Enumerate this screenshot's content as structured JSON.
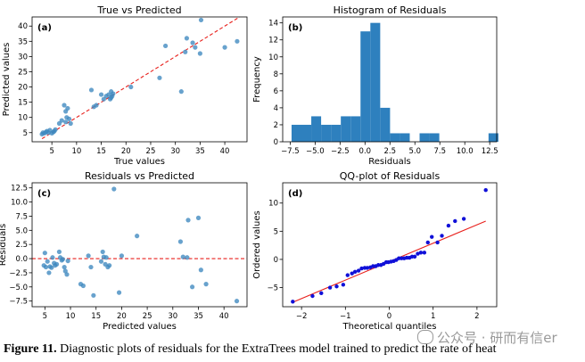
{
  "chart_data": [
    {
      "id": "a",
      "type": "scatter",
      "title": "True vs Predicted",
      "panel_label": "(a)",
      "xlabel": "True values",
      "ylabel": "Predicted values",
      "xlim": [
        1,
        44.5
      ],
      "ylim": [
        2,
        43
      ],
      "xticks": [
        5,
        10,
        15,
        20,
        25,
        30,
        35,
        40
      ],
      "yticks": [
        5,
        10,
        15,
        20,
        25,
        30,
        35,
        40
      ],
      "colors": {
        "points": "#3d88bf",
        "line": "#e8201c"
      },
      "reference_line": {
        "from": [
          3,
          3
        ],
        "to": [
          43,
          43
        ]
      },
      "points": [
        [
          3.0,
          4.5
        ],
        [
          3.2,
          5.0
        ],
        [
          3.5,
          4.8
        ],
        [
          3.8,
          5.2
        ],
        [
          4.0,
          5.5
        ],
        [
          4.3,
          5.0
        ],
        [
          4.6,
          5.8
        ],
        [
          5.0,
          4.8
        ],
        [
          5.3,
          5.2
        ],
        [
          5.7,
          6.0
        ],
        [
          5.5,
          5.5
        ],
        [
          6.5,
          8.0
        ],
        [
          7.0,
          9.0
        ],
        [
          7.5,
          14.0
        ],
        [
          7.8,
          12.0
        ],
        [
          7.8,
          8.5
        ],
        [
          8.0,
          10.0
        ],
        [
          8.2,
          13.0
        ],
        [
          8.5,
          9.5
        ],
        [
          8.8,
          8.0
        ],
        [
          13.0,
          19.0
        ],
        [
          13.5,
          13.5
        ],
        [
          14.0,
          14.0
        ],
        [
          15.0,
          17.5
        ],
        [
          15.5,
          16.0
        ],
        [
          16.0,
          17.0
        ],
        [
          16.5,
          17.5
        ],
        [
          17.0,
          18.5
        ],
        [
          17.0,
          16.5
        ],
        [
          16.8,
          16.0
        ],
        [
          17.2,
          17.0
        ],
        [
          17.4,
          17.8
        ],
        [
          21.0,
          20.0
        ],
        [
          26.8,
          23.0
        ],
        [
          28.0,
          33.5
        ],
        [
          31.2,
          18.5
        ],
        [
          32.0,
          31.5
        ],
        [
          32.3,
          36.0
        ],
        [
          33.5,
          34.5
        ],
        [
          34.0,
          33.0
        ],
        [
          35.0,
          31.0
        ],
        [
          35.2,
          42.0
        ],
        [
          40.0,
          33.0
        ],
        [
          42.5,
          35.0
        ]
      ]
    },
    {
      "id": "b",
      "type": "bar",
      "title": "Histogram of Residuals",
      "panel_label": "(b)",
      "xlabel": "Residuals",
      "ylabel": "Frequency",
      "xlim": [
        -8.25,
        13.2
      ],
      "ylim": [
        0,
        14.7
      ],
      "xticks": [
        -7.5,
        -5.0,
        -2.5,
        0.0,
        2.5,
        5.0,
        7.5,
        10.0,
        12.5
      ],
      "xtick_labels": [
        "−7.5",
        "−5.0",
        "−2.5",
        "0.0",
        "2.5",
        "5.0",
        "7.5",
        "10.0",
        "12.5"
      ],
      "yticks": [
        0,
        2,
        4,
        6,
        8,
        10,
        12,
        14
      ],
      "colors": {
        "bars": "#2e80be"
      },
      "bin_start": -7.36,
      "bin_width": 0.987,
      "values": [
        2,
        2,
        3,
        2,
        2,
        3,
        3,
        13,
        14,
        4,
        1,
        1,
        0,
        1,
        1,
        0,
        0,
        0,
        0,
        0,
        1
      ]
    },
    {
      "id": "c",
      "type": "scatter",
      "title": "Residuals vs Predicted",
      "panel_label": "(c)",
      "xlabel": "Predicted values",
      "ylabel": "Residuals",
      "xlim": [
        2.5,
        44.5
      ],
      "ylim": [
        -8.5,
        13.4
      ],
      "xticks": [
        5,
        10,
        15,
        20,
        25,
        30,
        35,
        40
      ],
      "yticks": [
        -7.5,
        -5.0,
        -2.5,
        0.0,
        2.5,
        5.0,
        7.5,
        10.0,
        12.5
      ],
      "ytick_labels": [
        "−7.5",
        "−5.0",
        "−2.5",
        "0.0",
        "2.5",
        "5.0",
        "7.5",
        "10.0",
        "12.5"
      ],
      "colors": {
        "points": "#3d88bf",
        "line": "#e8201c"
      },
      "zero_line": 0,
      "points": [
        [
          4.8,
          -1.2
        ],
        [
          5.0,
          1.0
        ],
        [
          5.2,
          -1.5
        ],
        [
          5.5,
          -0.5
        ],
        [
          5.8,
          -2.5
        ],
        [
          6.0,
          -1.4
        ],
        [
          6.3,
          -1.6
        ],
        [
          6.5,
          0.2
        ],
        [
          6.8,
          -0.8
        ],
        [
          7.0,
          -1.2
        ],
        [
          7.3,
          -1.0
        ],
        [
          7.8,
          1.2
        ],
        [
          8.0,
          0.2
        ],
        [
          8.3,
          -0.3
        ],
        [
          8.5,
          -0.1
        ],
        [
          8.8,
          -1.5
        ],
        [
          9.0,
          -2.2
        ],
        [
          9.3,
          -2.8
        ],
        [
          9.5,
          -0.4
        ],
        [
          12.0,
          -4.5
        ],
        [
          12.5,
          -4.8
        ],
        [
          13.5,
          0.5
        ],
        [
          14.0,
          -1.5
        ],
        [
          14.5,
          -6.5
        ],
        [
          16.0,
          -0.5
        ],
        [
          16.3,
          1.2
        ],
        [
          16.5,
          0.3
        ],
        [
          16.8,
          -1.0
        ],
        [
          17.0,
          0.2
        ],
        [
          17.3,
          -1.5
        ],
        [
          17.6,
          -1.2
        ],
        [
          18.5,
          12.3
        ],
        [
          19.5,
          -6.0
        ],
        [
          20.0,
          0.5
        ],
        [
          23.0,
          4.0
        ],
        [
          31.5,
          3.0
        ],
        [
          32.0,
          0.3
        ],
        [
          32.8,
          0.2
        ],
        [
          33.0,
          6.8
        ],
        [
          33.8,
          -5.0
        ],
        [
          35.0,
          7.2
        ],
        [
          35.5,
          -2.0
        ],
        [
          36.5,
          -4.5
        ],
        [
          42.5,
          -7.5
        ]
      ]
    },
    {
      "id": "d",
      "type": "scatter",
      "title": "QQ-plot of Residuals",
      "panel_label": "(d)",
      "xlabel": "Theoretical quantiles",
      "ylabel": "Ordered values",
      "xlim": [
        -2.43,
        2.45
      ],
      "ylim": [
        -8.4,
        13.6
      ],
      "xticks": [
        -2,
        -1,
        0,
        1,
        2
      ],
      "xtick_labels": [
        "−2",
        "−1",
        "0",
        "1",
        "2"
      ],
      "yticks": [
        -5,
        0,
        5,
        10
      ],
      "ytick_labels": [
        "−5",
        "0",
        "5",
        "10"
      ],
      "colors": {
        "points": "#1010d8",
        "line": "#e8201c"
      },
      "fit_line": {
        "from": [
          -2.2,
          -7.6
        ],
        "to": [
          2.2,
          6.8
        ]
      },
      "points": [
        [
          -2.2,
          -7.5
        ],
        [
          -1.75,
          -6.5
        ],
        [
          -1.55,
          -6.0
        ],
        [
          -1.35,
          -5.0
        ],
        [
          -1.2,
          -4.8
        ],
        [
          -1.05,
          -4.5
        ],
        [
          -0.95,
          -2.8
        ],
        [
          -0.85,
          -2.5
        ],
        [
          -0.78,
          -2.2
        ],
        [
          -0.7,
          -2.0
        ],
        [
          -0.63,
          -1.6
        ],
        [
          -0.56,
          -1.5
        ],
        [
          -0.5,
          -1.5
        ],
        [
          -0.43,
          -1.4
        ],
        [
          -0.37,
          -1.2
        ],
        [
          -0.31,
          -1.2
        ],
        [
          -0.25,
          -1.0
        ],
        [
          -0.19,
          -1.0
        ],
        [
          -0.13,
          -0.8
        ],
        [
          -0.07,
          -0.5
        ],
        [
          -0.02,
          -0.5
        ],
        [
          0.04,
          -0.4
        ],
        [
          0.1,
          -0.3
        ],
        [
          0.16,
          -0.1
        ],
        [
          0.22,
          0.2
        ],
        [
          0.28,
          0.2
        ],
        [
          0.34,
          0.2
        ],
        [
          0.4,
          0.3
        ],
        [
          0.46,
          0.3
        ],
        [
          0.52,
          0.5
        ],
        [
          0.58,
          0.5
        ],
        [
          0.65,
          1.0
        ],
        [
          0.72,
          1.2
        ],
        [
          0.8,
          1.2
        ],
        [
          0.88,
          3.0
        ],
        [
          0.97,
          4.0
        ],
        [
          1.1,
          3.0
        ],
        [
          1.2,
          4.2
        ],
        [
          1.35,
          6.0
        ],
        [
          1.5,
          6.8
        ],
        [
          1.7,
          7.2
        ],
        [
          2.2,
          12.3
        ]
      ]
    }
  ],
  "caption": {
    "label": "Figure 11.",
    "text": "Diagnostic plots of residuals for the ExtraTrees model trained to predict the rate of heat"
  },
  "watermark": {
    "text": "公众号 · 研而有信er"
  }
}
